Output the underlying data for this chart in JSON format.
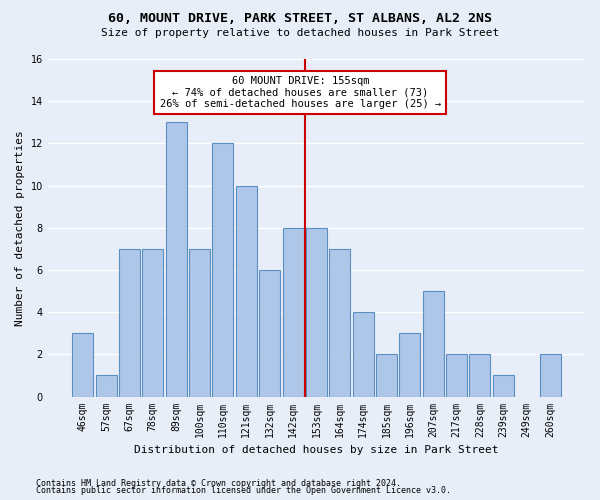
{
  "title": "60, MOUNT DRIVE, PARK STREET, ST ALBANS, AL2 2NS",
  "subtitle": "Size of property relative to detached houses in Park Street",
  "xlabel": "Distribution of detached houses by size in Park Street",
  "ylabel": "Number of detached properties",
  "footnote1": "Contains HM Land Registry data © Crown copyright and database right 2024.",
  "footnote2": "Contains public sector information licensed under the Open Government Licence v3.0.",
  "categories": [
    "46sqm",
    "57sqm",
    "67sqm",
    "78sqm",
    "89sqm",
    "100sqm",
    "110sqm",
    "121sqm",
    "132sqm",
    "142sqm",
    "153sqm",
    "164sqm",
    "174sqm",
    "185sqm",
    "196sqm",
    "207sqm",
    "217sqm",
    "228sqm",
    "239sqm",
    "249sqm",
    "260sqm"
  ],
  "values": [
    3,
    1,
    7,
    7,
    13,
    7,
    12,
    10,
    6,
    8,
    8,
    7,
    4,
    2,
    3,
    5,
    2,
    2,
    1,
    0,
    2
  ],
  "bar_color": "#aec6e8",
  "bar_edge_color": "#5a8fc2",
  "background_color": "#e8eef8",
  "grid_color": "#ffffff",
  "vline_color": "#cc0000",
  "vline_x_index": 10,
  "annotation_text": "60 MOUNT DRIVE: 155sqm\n← 74% of detached houses are smaller (73)\n26% of semi-detached houses are larger (25) →",
  "annotation_box_color": "#ffffff",
  "annotation_box_edge": "#cc0000",
  "ylim": [
    0,
    16
  ],
  "yticks": [
    0,
    2,
    4,
    6,
    8,
    10,
    12,
    14,
    16
  ],
  "bar_width": 0.9
}
